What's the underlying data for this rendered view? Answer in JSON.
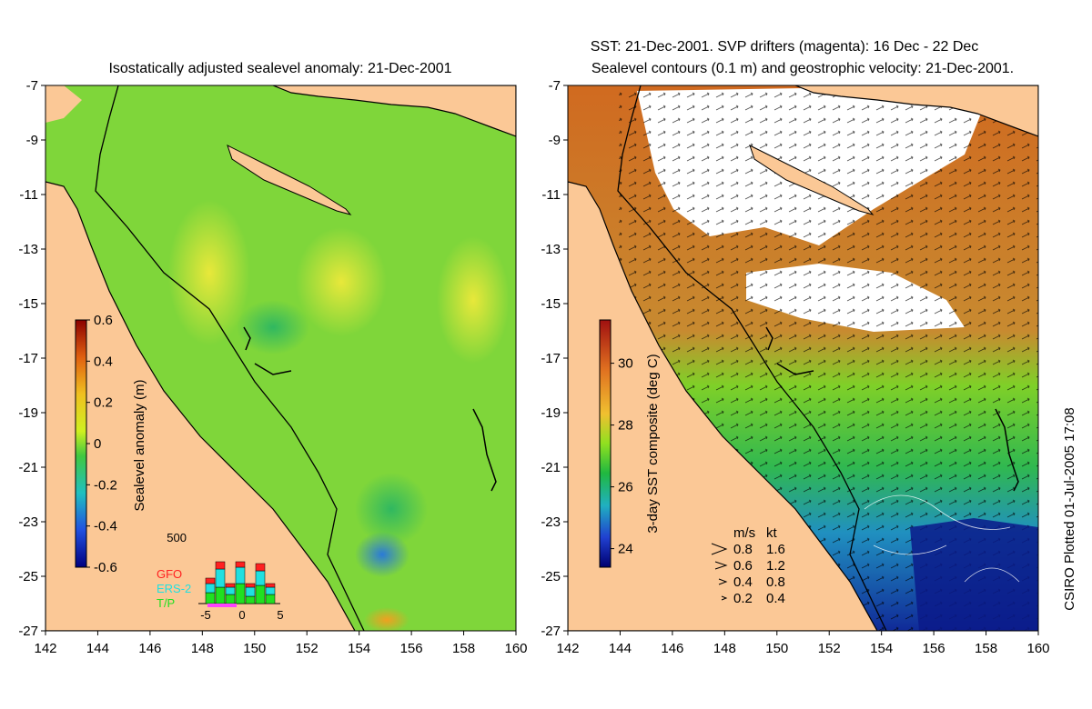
{
  "left_panel": {
    "title": "Isostatically adjusted sealevel anomaly: 21-Dec-2001",
    "x_ticks": [
      "142",
      "144",
      "146",
      "148",
      "150",
      "152",
      "154",
      "156",
      "158",
      "160"
    ],
    "y_ticks": [
      "-7",
      "-9",
      "-11",
      "-13",
      "-15",
      "-17",
      "-19",
      "-21",
      "-23",
      "-25",
      "-27"
    ],
    "colorbar": {
      "label": "Sealevel anomaly (m)",
      "ticks": [
        "0.6",
        "0.4",
        "0.2",
        "0",
        "-0.2",
        "-0.4",
        "-0.6"
      ]
    },
    "inset": {
      "top_value": "500",
      "legend": [
        {
          "label": "GFO",
          "color": "#ff2020"
        },
        {
          "label": "ERS-2",
          "color": "#20e0e0"
        },
        {
          "label": "T/P",
          "color": "#20e020"
        }
      ],
      "x_ticks": [
        "-5",
        "0",
        "5"
      ]
    }
  },
  "right_panel": {
    "title_line1": "SST: 21-Dec-2001. SVP drifters (magenta): 16 Dec - 22 Dec",
    "title_line2": "Sealevel contours (0.1 m) and geostrophic velocity: 21-Dec-2001.",
    "x_ticks": [
      "142",
      "144",
      "146",
      "148",
      "150",
      "152",
      "154",
      "156",
      "158",
      "160"
    ],
    "y_ticks": [
      "-7",
      "-9",
      "-11",
      "-13",
      "-15",
      "-17",
      "-19",
      "-21",
      "-23",
      "-25",
      "-27"
    ],
    "colorbar": {
      "label": "3-day SST composite (deg C)",
      "ticks": [
        "30",
        "28",
        "26",
        "24"
      ]
    },
    "speed_legend": {
      "header_ms": "m/s",
      "header_kt": "kt",
      "rows": [
        {
          "ms": "0.8",
          "kt": "1.6"
        },
        {
          "ms": "0.6",
          "kt": "1.2"
        },
        {
          "ms": "0.4",
          "kt": "0.8"
        },
        {
          "ms": "0.2",
          "kt": "0.4"
        }
      ]
    }
  },
  "credit": "CSIRO Plotted 01-Jul-2005 17:08",
  "colors": {
    "land": "#fbc896",
    "sla_base": "#7fd63a",
    "sst_warm": "#d97a22",
    "sst_mid": "#3cc43c",
    "sst_cold": "#1e3cb4"
  }
}
